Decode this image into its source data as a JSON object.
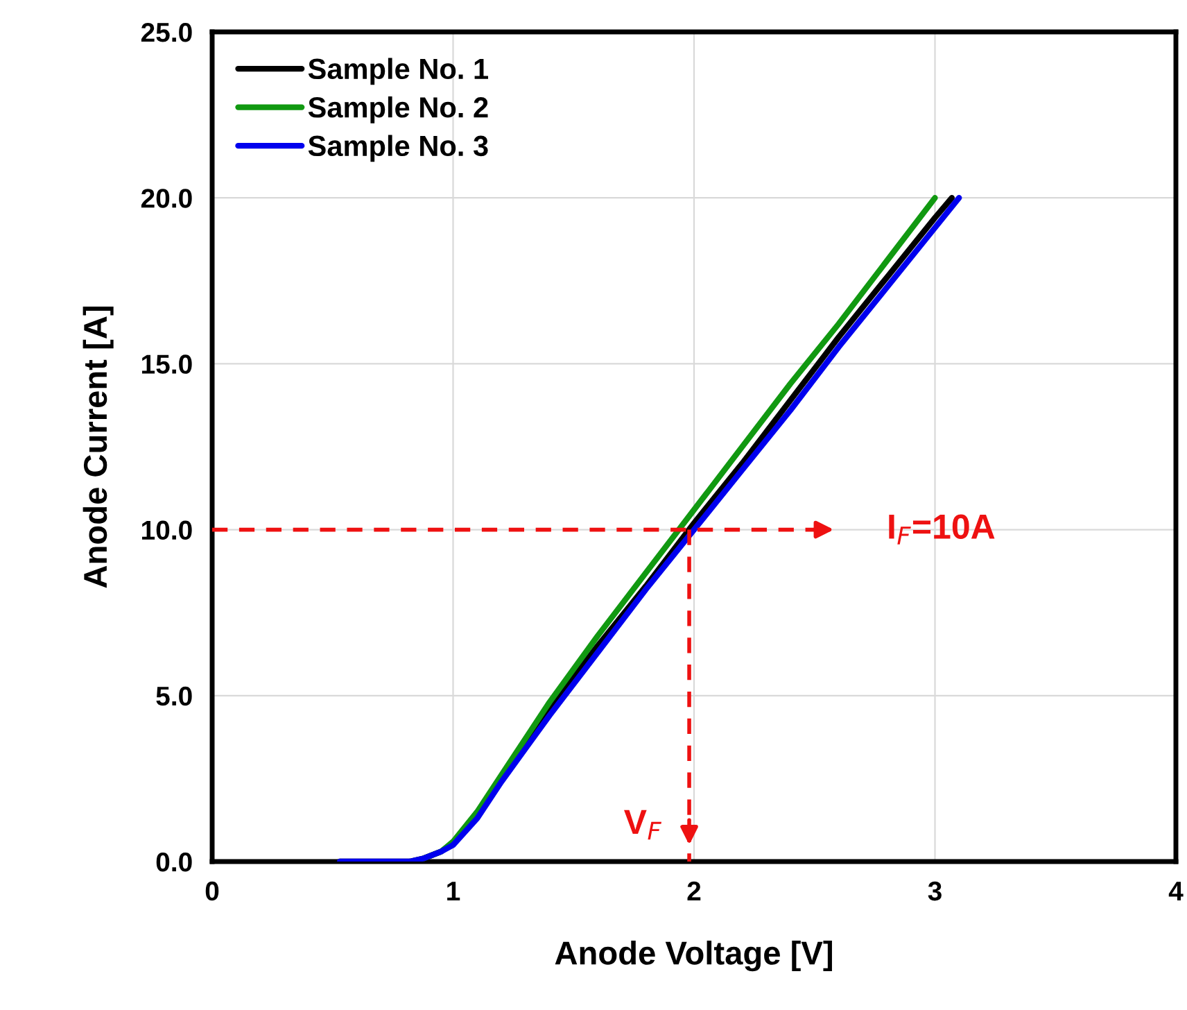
{
  "chart_data": {
    "type": "line",
    "xlabel": "Anode Voltage [V]",
    "ylabel": "Anode Current [A]",
    "xlim": [
      0,
      4
    ],
    "xticks": [
      0,
      1,
      2,
      3,
      4
    ],
    "ylim": [
      0,
      25
    ],
    "yticks": [
      {
        "value": 0,
        "label": "0.0"
      },
      {
        "value": 5,
        "label": "5.0"
      },
      {
        "value": 10,
        "label": "10.0"
      },
      {
        "value": 15,
        "label": "15.0"
      },
      {
        "value": 20,
        "label": "20.0"
      },
      {
        "value": 25,
        "label": "25.0"
      }
    ],
    "grid": true,
    "legend": "top left",
    "line_style": "solid",
    "marker": "none",
    "series": [
      {
        "name": "Sample No. 1",
        "color": "#000000",
        "x": [
          0.53,
          0.82,
          0.88,
          0.95,
          1.0,
          1.1,
          1.2,
          1.4,
          1.6,
          1.8,
          2.0,
          2.2,
          2.4,
          2.6,
          2.8,
          3.0,
          3.07
        ],
        "values": [
          0,
          0,
          0.1,
          0.3,
          0.55,
          1.4,
          2.5,
          4.6,
          6.5,
          8.3,
          10.2,
          12.0,
          13.9,
          15.8,
          17.6,
          19.4,
          20.0
        ]
      },
      {
        "name": "Sample No. 2",
        "color": "#119911",
        "x": [
          0.88,
          0.95,
          1.0,
          1.1,
          1.2,
          1.4,
          1.6,
          1.8,
          2.0,
          2.2,
          2.4,
          2.6,
          2.8,
          3.0
        ],
        "values": [
          0.1,
          0.3,
          0.6,
          1.5,
          2.6,
          4.8,
          6.8,
          8.7,
          10.6,
          12.5,
          14.4,
          16.2,
          18.1,
          20.0
        ]
      },
      {
        "name": "Sample No. 3",
        "color": "#0000ee",
        "x": [
          0.53,
          0.82,
          0.88,
          0.95,
          1.0,
          1.1,
          1.2,
          1.4,
          1.6,
          1.8,
          2.0,
          2.2,
          2.4,
          2.6,
          2.8,
          3.0,
          3.1
        ],
        "values": [
          0,
          0,
          0.1,
          0.3,
          0.5,
          1.3,
          2.4,
          4.4,
          6.3,
          8.2,
          10.0,
          11.8,
          13.6,
          15.5,
          17.3,
          19.1,
          20.0
        ]
      }
    ],
    "ref_lines": [
      {
        "axis": "y",
        "value": 10,
        "label": "I$_{F}$=10A",
        "color": "#ee1111",
        "line_style": "dashed"
      },
      {
        "axis": "x",
        "value": 1.98,
        "label": "V$_{F}$",
        "color": "#ee1111",
        "line_style": "dashed"
      }
    ]
  }
}
